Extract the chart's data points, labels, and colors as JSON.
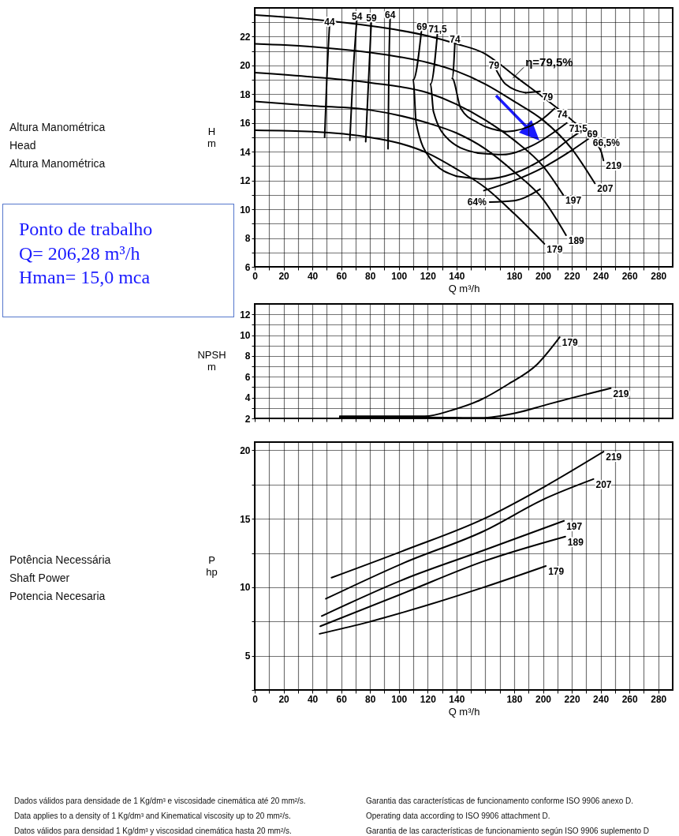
{
  "chart_data": [
    {
      "type": "line",
      "xlabel": "Q m³/h",
      "ylabel": "H\nm",
      "xlim": [
        0,
        290
      ],
      "ylim": [
        6,
        24
      ],
      "xticks": [
        0,
        {
          "value": 10,
          "label": null
        },
        20,
        {
          "value": 30,
          "label": null
        },
        40,
        {
          "value": 50,
          "label": null
        },
        60,
        {
          "value": 70,
          "label": null
        },
        80,
        {
          "value": 90,
          "label": null
        },
        100,
        {
          "value": 110,
          "label": null
        },
        120,
        {
          "value": 130,
          "label": null
        },
        140,
        {
          "value": 150,
          "label": null
        },
        {
          "value": 160,
          "label": null
        },
        {
          "value": 170,
          "label": null
        },
        180,
        {
          "value": 190,
          "label": null
        },
        200,
        {
          "value": 210,
          "label": null
        },
        220,
        {
          "value": 230,
          "label": null
        },
        240,
        {
          "value": 250,
          "label": null
        },
        260,
        {
          "value": 270,
          "label": null
        },
        280
      ],
      "yticks": [
        6,
        {
          "value": 7,
          "label": null
        },
        8,
        {
          "value": 9,
          "label": null
        },
        10,
        {
          "value": 11,
          "label": null
        },
        12,
        {
          "value": 13,
          "label": null
        },
        14,
        {
          "value": 15,
          "label": null
        },
        16,
        {
          "value": 17,
          "label": null
        },
        18,
        {
          "value": 19,
          "label": null
        },
        20,
        {
          "value": 21,
          "label": null
        },
        22,
        {
          "value": 23,
          "label": null
        }
      ],
      "grid": true,
      "series": [
        {
          "name": "219",
          "color": "#000000",
          "x": [
            0,
            40,
            80,
            100,
            120,
            140,
            160,
            170,
            180,
            200,
            220,
            240,
            242
          ],
          "values": [
            23.5,
            23.2,
            22.75,
            22.45,
            22.05,
            21.5,
            20.8,
            20.1,
            19.3,
            17.8,
            16.2,
            14.1,
            13.4
          ]
        },
        {
          "name": "207",
          "color": "#000000",
          "x": [
            0,
            40,
            80,
            100,
            120,
            140,
            160,
            180,
            200,
            220,
            236
          ],
          "values": [
            21.5,
            21.3,
            20.9,
            20.6,
            20.2,
            19.6,
            18.7,
            17.5,
            16.2,
            14.2,
            11.8
          ]
        },
        {
          "name": "197",
          "color": "#000000",
          "x": [
            0,
            40,
            80,
            120,
            140,
            160,
            180,
            200,
            214
          ],
          "values": [
            19.5,
            19.2,
            18.8,
            18.1,
            17.3,
            16.2,
            14.8,
            13.0,
            11.0
          ]
        },
        {
          "name": "189",
          "color": "#000000",
          "x": [
            0,
            40,
            80,
            120,
            140,
            160,
            180,
            200,
            216
          ],
          "values": [
            17.5,
            17.2,
            16.9,
            16.0,
            15.3,
            14.2,
            12.6,
            10.7,
            8.2
          ]
        },
        {
          "name": "179",
          "color": "#000000",
          "x": [
            0,
            40,
            80,
            100,
            120,
            140,
            160,
            180,
            201
          ],
          "values": [
            15.5,
            15.4,
            15.0,
            14.6,
            13.9,
            12.8,
            11.5,
            9.7,
            7.6
          ]
        },
        {
          "name": "44",
          "color": "#000000",
          "x": [
            48.5,
            50,
            52
          ],
          "values": [
            15.0,
            19.0,
            23.0
          ]
        },
        {
          "name": "54",
          "color": "#000000",
          "x": [
            66,
            68,
            71
          ],
          "values": [
            14.8,
            19.0,
            23.4
          ]
        },
        {
          "name": "59",
          "color": "#000000",
          "x": [
            77,
            79,
            81
          ],
          "values": [
            14.7,
            19.0,
            23.3
          ]
        },
        {
          "name": "64",
          "color": "#000000",
          "x": [
            92.5,
            93,
            94
          ],
          "values": [
            14.2,
            19.0,
            23.5
          ]
        },
        {
          "name": "69",
          "color": "#000000",
          "x": [
            140,
            122,
            112,
            110,
            116
          ],
          "values": [
            12.3,
            13.5,
            16.0,
            19.0,
            22.7
          ]
        },
        {
          "name": "69",
          "color": "#000000",
          "x": [
            140,
            160,
            180,
            200,
            220,
            229
          ],
          "values": [
            12.3,
            12.1,
            12.5,
            13.5,
            15.0,
            15.6
          ]
        },
        {
          "name": "71,5",
          "color": "#000000",
          "x": [
            155,
            135,
            124,
            122,
            127
          ],
          "values": [
            13.9,
            14.8,
            16.8,
            18.7,
            22.5
          ]
        },
        {
          "name": "71,5",
          "color": "#000000",
          "x": [
            155,
            172,
            192,
            216.5
          ],
          "values": [
            13.9,
            13.8,
            14.4,
            16.0
          ]
        },
        {
          "name": "74",
          "color": "#000000",
          "x": [
            174,
            155,
            143,
            137,
            139
          ],
          "values": [
            15.4,
            16.0,
            17.0,
            19.1,
            21.8
          ]
        },
        {
          "name": "74",
          "color": "#000000",
          "x": [
            174,
            180,
            200,
            208
          ],
          "values": [
            15.4,
            15.45,
            16.3,
            17.0
          ]
        },
        {
          "name": "79",
          "color": "#000000",
          "x": [
            188,
            174,
            166
          ],
          "values": [
            18.1,
            18.7,
            20.0
          ]
        },
        {
          "name": "79",
          "color": "#000000",
          "x": [
            188,
            198
          ],
          "values": [
            18.1,
            18.2
          ]
        },
        {
          "name": "66,5%",
          "color": "#000000",
          "x": [
            159,
            180,
            200,
            220,
            233
          ],
          "values": [
            11.3,
            12.0,
            12.9,
            14.1,
            15.0
          ]
        },
        {
          "name": "64%",
          "color": "#000000",
          "x": [
            198,
            180,
            163
          ],
          "values": [
            11.4,
            10.6,
            10.5
          ]
        }
      ],
      "annotations": [
        "Altura Manométrica\nHead\nAltura Manométrica",
        "Ponto de trabalho\nQ= 206,28 m³/h\nHman= 15,0 mca",
        {
          "text": "η=79,5%",
          "x": 179,
          "y": 19.1
        }
      ]
    },
    {
      "type": "line",
      "ylabel": "NPSH\nm",
      "xlim": [
        0,
        290
      ],
      "ylim": [
        2,
        13
      ],
      "tick_labels": "y",
      "xticks": [
        0,
        10,
        20,
        30,
        40,
        50,
        60,
        70,
        80,
        90,
        100,
        110,
        120,
        130,
        140,
        150,
        160,
        170,
        180,
        190,
        200,
        210,
        220,
        230,
        240,
        250,
        260,
        270,
        280
      ],
      "yticks": [
        2,
        {
          "value": 3,
          "label": null
        },
        4,
        {
          "value": 5,
          "label": null
        },
        6,
        {
          "value": 7,
          "label": null
        },
        8,
        {
          "value": 9,
          "label": null
        },
        10,
        {
          "value": 11,
          "label": null
        },
        12
      ],
      "grid": true,
      "series": [
        {
          "name": "179",
          "color": "#000000",
          "x": [
            59,
            118,
            137,
            157,
            176,
            196,
            211.6
          ],
          "values": [
            2.2,
            2.2,
            2.8,
            3.8,
            5.3,
            7.2,
            9.8
          ]
        },
        {
          "name": "219",
          "color": "#000000",
          "x": [
            59,
            120,
            157,
            182,
            202,
            221,
            247
          ],
          "values": [
            2.1,
            2.1,
            2.05,
            2.55,
            3.3,
            4.0,
            4.9
          ]
        }
      ]
    },
    {
      "type": "line",
      "xlabel": "Q m³/h",
      "ylabel": "P\nhp",
      "xlim": [
        0,
        290
      ],
      "ylim": [
        2.5,
        20.6
      ],
      "xticks": [
        0,
        {
          "value": 10,
          "label": null
        },
        20,
        {
          "value": 30,
          "label": null
        },
        40,
        {
          "value": 50,
          "label": null
        },
        60,
        {
          "value": 70,
          "label": null
        },
        80,
        {
          "value": 90,
          "label": null
        },
        100,
        {
          "value": 110,
          "label": null
        },
        120,
        {
          "value": 130,
          "label": null
        },
        140,
        {
          "value": 150,
          "label": null
        },
        {
          "value": 160,
          "label": null
        },
        {
          "value": 170,
          "label": null
        },
        180,
        {
          "value": 190,
          "label": null
        },
        200,
        {
          "value": 210,
          "label": null
        },
        220,
        {
          "value": 230,
          "label": null
        },
        240,
        {
          "value": 250,
          "label": null
        },
        260,
        {
          "value": 270,
          "label": null
        },
        280
      ],
      "yticks": [
        {
          "value": 2.5,
          "label": null
        },
        5,
        {
          "value": 7.5,
          "label": null
        },
        10,
        {
          "value": 12.5,
          "label": null
        },
        15,
        {
          "value": 17.5,
          "label": null
        },
        20
      ],
      "grid": true,
      "series": [
        {
          "name": "219",
          "color": "#000000",
          "x": [
            53.3,
            104,
            159,
            202,
            242
          ],
          "values": [
            10.7,
            12.7,
            15.0,
            17.4,
            19.9
          ]
        },
        {
          "name": "207",
          "color": "#000000",
          "x": [
            49.4,
            104,
            159,
            202,
            235
          ],
          "values": [
            9.16,
            11.8,
            14.1,
            16.5,
            17.9
          ]
        },
        {
          "name": "197",
          "color": "#000000",
          "x": [
            46.5,
            104,
            159,
            214.6
          ],
          "values": [
            7.9,
            10.6,
            12.7,
            14.85
          ]
        },
        {
          "name": "189",
          "color": "#000000",
          "x": [
            45.5,
            104,
            159,
            215.5
          ],
          "values": [
            7.15,
            9.6,
            11.9,
            13.7
          ]
        },
        {
          "name": "179",
          "color": "#000000",
          "x": [
            45,
            75,
            104,
            159,
            202
          ],
          "values": [
            6.6,
            7.35,
            8.2,
            10.0,
            11.55
          ]
        }
      ],
      "annotations": [
        "Potência Necessária\nShaft Power\nPotencia Necesaria",
        "Dados válidos para densidade de 1 Kg/dm³ e viscosidade cinemática até 20 mm²/s.\nData applies to a density of 1 Kg/dm³ and Kinematical viscosity up to 20 mm²/s.\nDatos válidos para densidad 1 Kg/dm³ y viscosidad cinemática hasta 20 mm²/s.",
        "Garantia das características de funcionamento conforme ISO 9906 anexo D.\nOperating data according to ISO 9906 attachment D.\nGarantia de las características de funcionamiento según ISO 9906 suplemento D"
      ]
    }
  ]
}
